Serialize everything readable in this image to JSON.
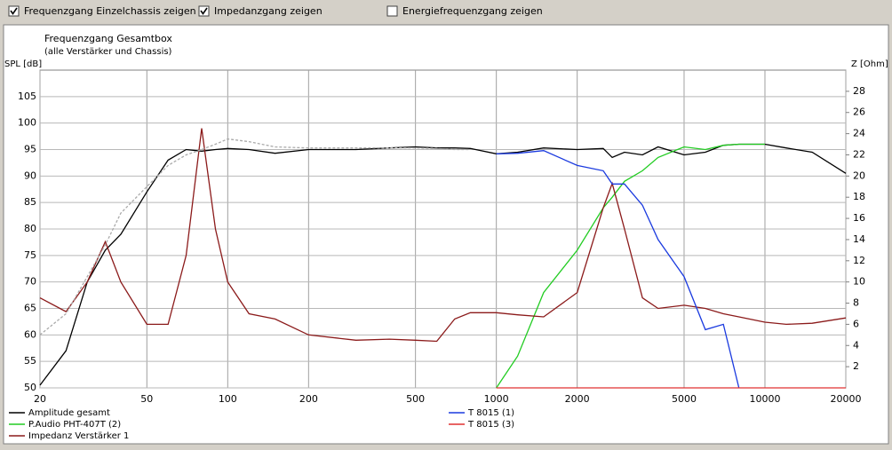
{
  "checkboxes": [
    {
      "label": "Frequenzgang Einzelchassis zeigen",
      "checked": true
    },
    {
      "label": "Impedanzgang zeigen",
      "checked": true
    },
    {
      "label": "Energiefrequenzgang zeigen",
      "checked": false
    }
  ],
  "chart_data": {
    "type": "line",
    "title": "Frequenzgang Gesamtbox",
    "subtitle": "(alle Verstärker und Chassis)",
    "ylabel": "SPL [dB]",
    "y2label": "Z [Ohm]",
    "xscale": "log",
    "xlim": [
      20,
      20000
    ],
    "xticks": [
      20,
      50,
      100,
      200,
      500,
      1000,
      2000,
      5000,
      10000,
      20000
    ],
    "ylim": [
      50,
      110
    ],
    "yticks": [
      50,
      55,
      60,
      65,
      70,
      75,
      80,
      85,
      90,
      95,
      100,
      105
    ],
    "y2lim": [
      0,
      30
    ],
    "y2ticks": [
      2,
      4,
      6,
      8,
      10,
      12,
      14,
      16,
      18,
      20,
      22,
      24,
      26,
      28
    ],
    "grid": true,
    "x": [
      20,
      25,
      30,
      35,
      40,
      50,
      60,
      70,
      80,
      90,
      100,
      120,
      150,
      200,
      300,
      400,
      500,
      600,
      700,
      800,
      1000,
      1200,
      1500,
      2000,
      2500,
      2700,
      3000,
      3500,
      4000,
      5000,
      6000,
      7000,
      8000,
      10000,
      12000,
      15000,
      20000
    ],
    "series": [
      {
        "name": "Amplitude gesamt",
        "color": "#000000",
        "values": [
          50.5,
          57,
          70,
          76,
          79,
          87,
          93,
          95,
          94.7,
          95,
          95.2,
          95,
          94.3,
          95,
          95,
          95.3,
          95.5,
          95.3,
          95.3,
          95.2,
          94.2,
          94.5,
          95.3,
          95,
          95.2,
          93.5,
          94.5,
          94,
          95.5,
          94,
          94.5,
          95.8,
          96,
          96,
          95.3,
          94.5,
          90.5
        ]
      },
      {
        "name": "P.Audio PHT-407T (2)",
        "color": "#22cc22",
        "values": [
          null,
          null,
          null,
          null,
          null,
          null,
          null,
          null,
          null,
          null,
          null,
          null,
          null,
          null,
          null,
          null,
          null,
          null,
          null,
          null,
          50,
          56,
          68,
          76,
          84,
          86,
          89,
          91,
          93.5,
          95.5,
          95,
          95.8,
          96,
          96,
          null,
          null,
          null
        ]
      },
      {
        "name": "Impedanz Verstärker 1",
        "color": "#8b1a1a",
        "axis": "y2",
        "values": [
          8.5,
          7.2,
          10,
          13.8,
          10,
          6,
          6,
          12.5,
          24.5,
          15,
          10,
          7,
          6.5,
          5,
          4.5,
          4.6,
          4.5,
          4.4,
          6.5,
          7.1,
          7.1,
          6.9,
          6.7,
          9,
          17,
          19.3,
          15,
          8.5,
          7.5,
          7.8,
          7.5,
          7,
          6.7,
          6.2,
          6,
          6.1,
          6.6
        ]
      },
      {
        "name": "T 8015 (1)",
        "color": "#1a3adf",
        "values": [
          null,
          null,
          null,
          null,
          null,
          null,
          null,
          null,
          null,
          null,
          null,
          null,
          null,
          null,
          null,
          null,
          null,
          null,
          null,
          null,
          94.2,
          94.3,
          94.8,
          92,
          91,
          88.5,
          88.5,
          84.5,
          78,
          71,
          61,
          62,
          50,
          null,
          null,
          null,
          null
        ]
      },
      {
        "name": "T 8015 (3)",
        "color": "#e03030",
        "values": [
          null,
          null,
          null,
          null,
          null,
          null,
          null,
          null,
          null,
          null,
          null,
          null,
          null,
          null,
          null,
          null,
          null,
          null,
          null,
          null,
          50,
          50,
          50,
          50,
          50,
          50,
          50,
          50,
          50,
          50,
          50,
          50,
          50,
          50,
          50,
          50,
          50
        ]
      },
      {
        "color": "#aaaaaa",
        "dash": true,
        "values": [
          60,
          64,
          71,
          77,
          83,
          88,
          92,
          94,
          95,
          96,
          97,
          96.5,
          95.5,
          95.3,
          95.3,
          95.3,
          95.3,
          95.2,
          95,
          95,
          null,
          null,
          null,
          null,
          null,
          null,
          null,
          null,
          null,
          null,
          null,
          null,
          null,
          null,
          null,
          null,
          null
        ]
      }
    ]
  }
}
